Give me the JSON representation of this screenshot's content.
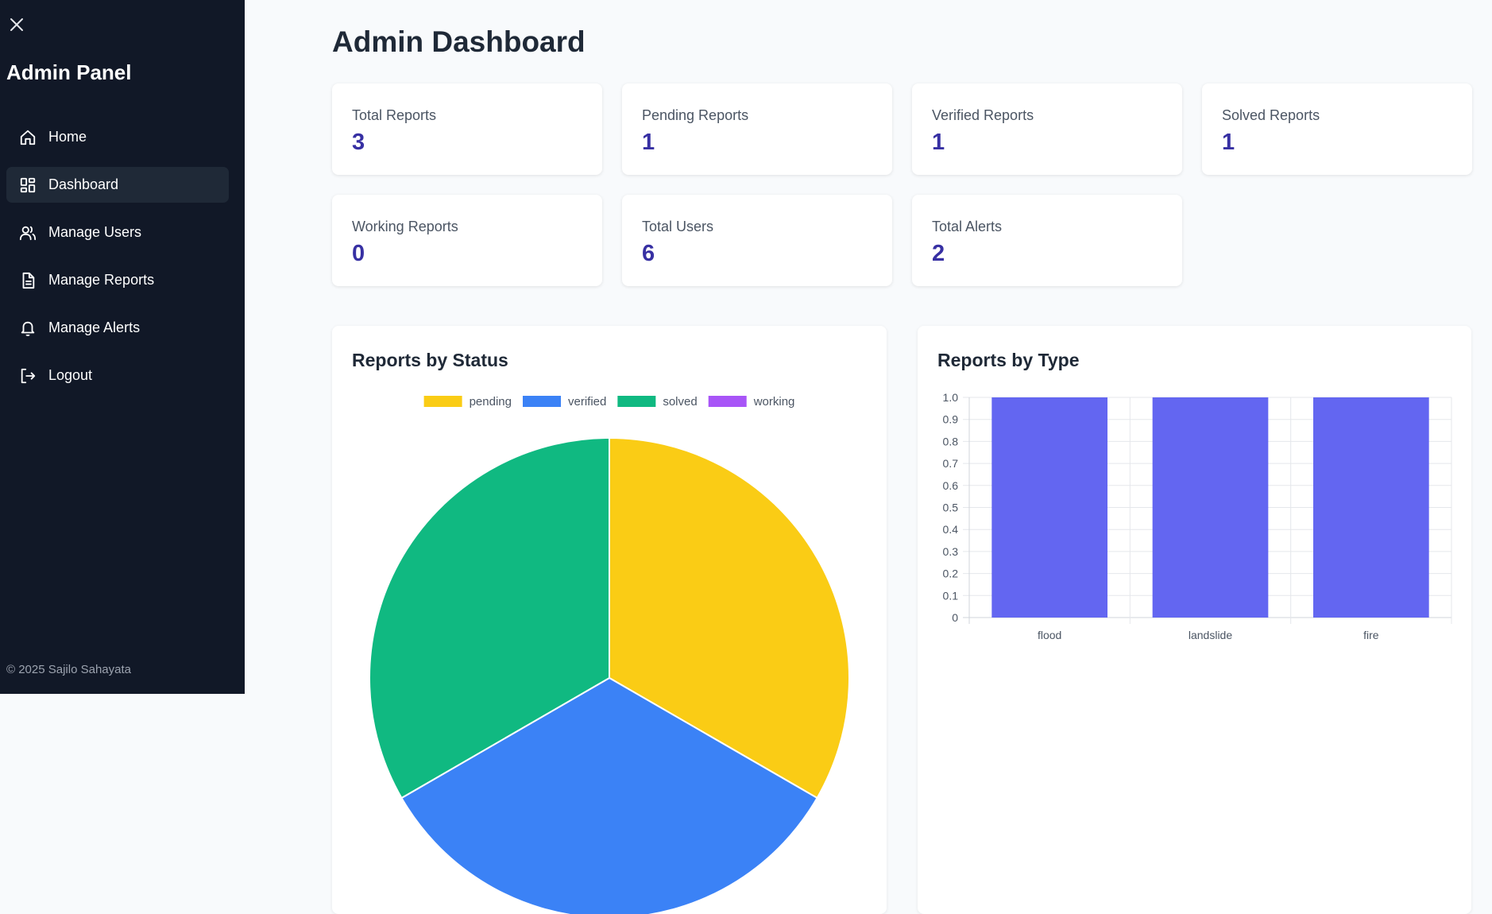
{
  "sidebar": {
    "title": "Admin Panel",
    "items": [
      {
        "label": "Home",
        "icon": "home-icon",
        "active": false
      },
      {
        "label": "Dashboard",
        "icon": "dashboard-icon",
        "active": true
      },
      {
        "label": "Manage Users",
        "icon": "users-icon",
        "active": false
      },
      {
        "label": "Manage Reports",
        "icon": "document-icon",
        "active": false
      },
      {
        "label": "Manage Alerts",
        "icon": "bell-icon",
        "active": false
      },
      {
        "label": "Logout",
        "icon": "logout-icon",
        "active": false
      }
    ],
    "footer": "© 2025 Sajilo Sahayata"
  },
  "main": {
    "title": "Admin Dashboard",
    "cards": [
      {
        "label": "Total Reports",
        "value": "3"
      },
      {
        "label": "Pending Reports",
        "value": "1"
      },
      {
        "label": "Verified Reports",
        "value": "1"
      },
      {
        "label": "Solved Reports",
        "value": "1"
      },
      {
        "label": "Working Reports",
        "value": "0"
      },
      {
        "label": "Total Users",
        "value": "6"
      },
      {
        "label": "Total Alerts",
        "value": "2"
      }
    ]
  },
  "colors": {
    "pending": "#facc15",
    "verified": "#3b82f6",
    "solved": "#10b981",
    "working": "#a855f7",
    "bar": "#6366f1"
  },
  "chart_data": [
    {
      "type": "pie",
      "title": "Reports by Status",
      "labels": [
        "pending",
        "verified",
        "solved",
        "working"
      ],
      "values": [
        1,
        1,
        1,
        0
      ],
      "legend": "top"
    },
    {
      "type": "bar",
      "title": "Reports by Type",
      "categories": [
        "flood",
        "landslide",
        "fire"
      ],
      "values": [
        1,
        1,
        1
      ],
      "ylim": [
        0,
        1
      ],
      "yticks": [
        "0",
        "0.1",
        "0.2",
        "0.3",
        "0.4",
        "0.5",
        "0.6",
        "0.7",
        "0.8",
        "0.9",
        "1.0"
      ],
      "grid": true
    }
  ]
}
